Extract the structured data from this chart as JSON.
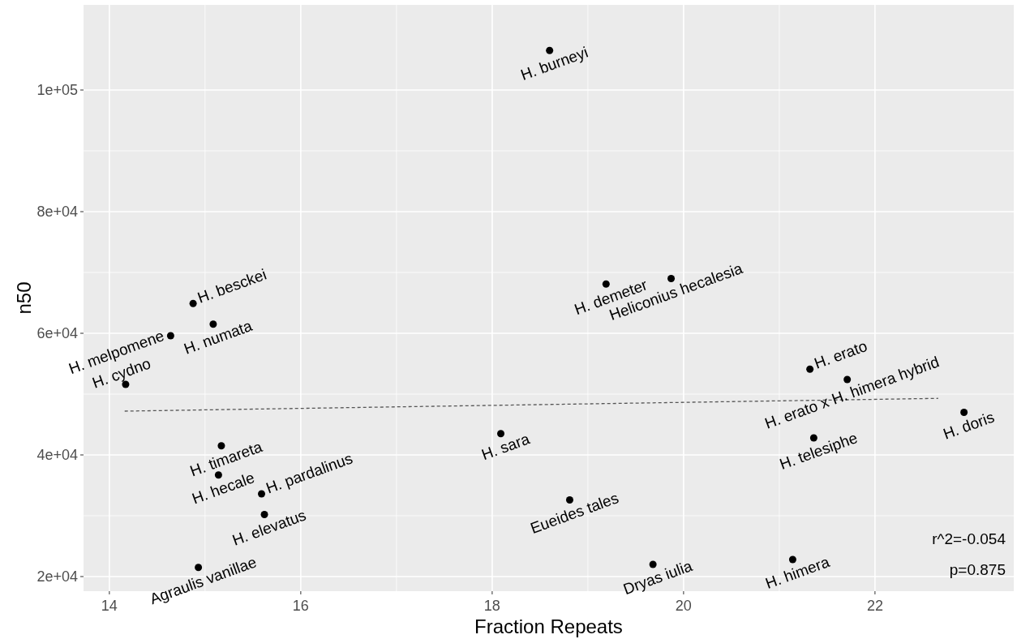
{
  "chart_data": {
    "type": "scatter",
    "xlabel": "Fraction Repeats",
    "ylabel": "n50",
    "xlim": [
      13.73,
      23.45
    ],
    "ylim": [
      17600,
      114000
    ],
    "xticks": [
      14,
      16,
      18,
      20,
      22
    ],
    "yticks": [
      {
        "value": 20000,
        "label": "2e+04"
      },
      {
        "value": 40000,
        "label": "4e+04"
      },
      {
        "value": 60000,
        "label": "6e+04"
      },
      {
        "value": 80000,
        "label": "8e+04"
      },
      {
        "value": 100000,
        "label": "1e+05"
      }
    ],
    "grid": true,
    "marker": "circle",
    "series": [
      {
        "color": "#000000",
        "x": [
          14.875,
          14.64,
          15.085,
          14.17,
          15.17,
          15.14,
          15.59,
          15.62,
          14.93,
          18.6,
          19.19,
          19.87,
          18.09,
          18.81,
          19.68,
          21.32,
          21.71,
          22.93,
          21.36,
          21.14
        ],
        "values": [
          64900,
          59600,
          61500,
          51600,
          41500,
          36700,
          33600,
          30200,
          21500,
          106500,
          68100,
          69000,
          43500,
          32600,
          22000,
          54100,
          52400,
          47000,
          42800,
          22800
        ]
      },
      {
        "type": "line",
        "color": "#555555",
        "line_style": "dashed",
        "marker": "none",
        "x": [
          14.16,
          22.66
        ],
        "values": [
          47200,
          49300
        ]
      }
    ],
    "annotations": [
      {
        "text": "H. besckei",
        "x": 14.875,
        "y": 64900
      },
      {
        "text": "H. melpomene",
        "x": 14.64,
        "y": 59600
      },
      {
        "text": "H. numata",
        "x": 15.085,
        "y": 61500
      },
      {
        "text": "H. cydno",
        "x": 14.17,
        "y": 51600
      },
      {
        "text": "H. timareta",
        "x": 15.17,
        "y": 41500
      },
      {
        "text": "H. hecale",
        "x": 15.14,
        "y": 36700
      },
      {
        "text": "H. pardalinus",
        "x": 15.59,
        "y": 33600
      },
      {
        "text": "H. elevatus",
        "x": 15.62,
        "y": 30200
      },
      {
        "text": "Agraulis vanillae",
        "x": 14.93,
        "y": 21500
      },
      {
        "text": "H. burneyi",
        "x": 18.6,
        "y": 106500
      },
      {
        "text": "H. demeter",
        "x": 19.19,
        "y": 68100
      },
      {
        "text": "Heliconius hecalesia",
        "x": 19.87,
        "y": 69000
      },
      {
        "text": "H. sara",
        "x": 18.09,
        "y": 43500
      },
      {
        "text": "Eueides tales",
        "x": 18.81,
        "y": 32600
      },
      {
        "text": "Dryas iulia",
        "x": 19.68,
        "y": 22000
      },
      {
        "text": "H. erato",
        "x": 21.32,
        "y": 54100
      },
      {
        "text": "H. erato x H. himera hybrid",
        "x": 21.71,
        "y": 52400
      },
      {
        "text": "H. doris",
        "x": 22.93,
        "y": 47000
      },
      {
        "text": "H. telesiphe",
        "x": 21.36,
        "y": 42800
      },
      {
        "text": "H. himera",
        "x": 21.14,
        "y": 22800
      },
      "r^2=-0.054",
      "p=0.875"
    ]
  }
}
